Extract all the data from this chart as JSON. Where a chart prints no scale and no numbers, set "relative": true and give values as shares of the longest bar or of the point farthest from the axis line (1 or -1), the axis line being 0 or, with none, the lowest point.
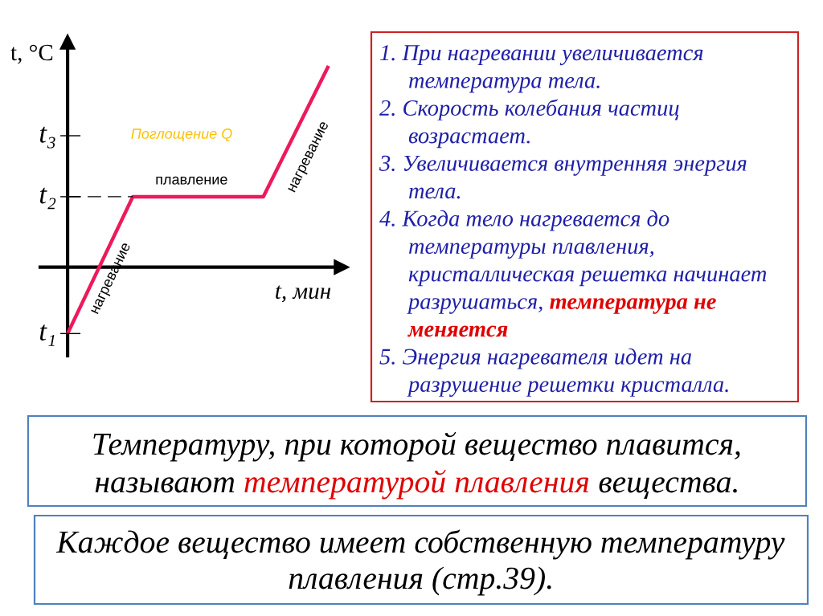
{
  "chart_data": {
    "type": "line",
    "relative": true,
    "ylabel": "t, °C",
    "xlabel": "t, мин",
    "categories": [
      null,
      null,
      null,
      null,
      null
    ],
    "series": [
      {
        "values": [
          -0.33,
          0.35,
          0.35,
          0.35,
          1
        ],
        "color": "#ec1a5b"
      },
      {
        "values": [
          0.35,
          0.35,
          null,
          null,
          null
        ],
        "color": "#000000",
        "line_style": "dashed"
      }
    ],
    "annotations": [
      "t₁",
      "t₂",
      "t₃",
      "Поглощение Q",
      "нагревание",
      "плавление",
      "нагревание",
      "1. При нагревании увеличивается\nтемпература тела.",
      "2. Скорость колебания частиц\nвозрастает.",
      "3. Увеличивается внутренняя энергия\nтела.",
      "4. Когда тело нагревается до\nтемпературы плавления,\nкристаллическая решетка начинает\nразрушаться,",
      "температура не\nменяется",
      "5. Энергия нагревателя идет на\nразрушение решетки кристалла.",
      "Температуру, при которой вещество плавится,\nназывают",
      "температурой плавления",
      "вещества.",
      "Каждое вещество имеет собственную температуру\nплавления (стр.39)."
    ]
  }
}
